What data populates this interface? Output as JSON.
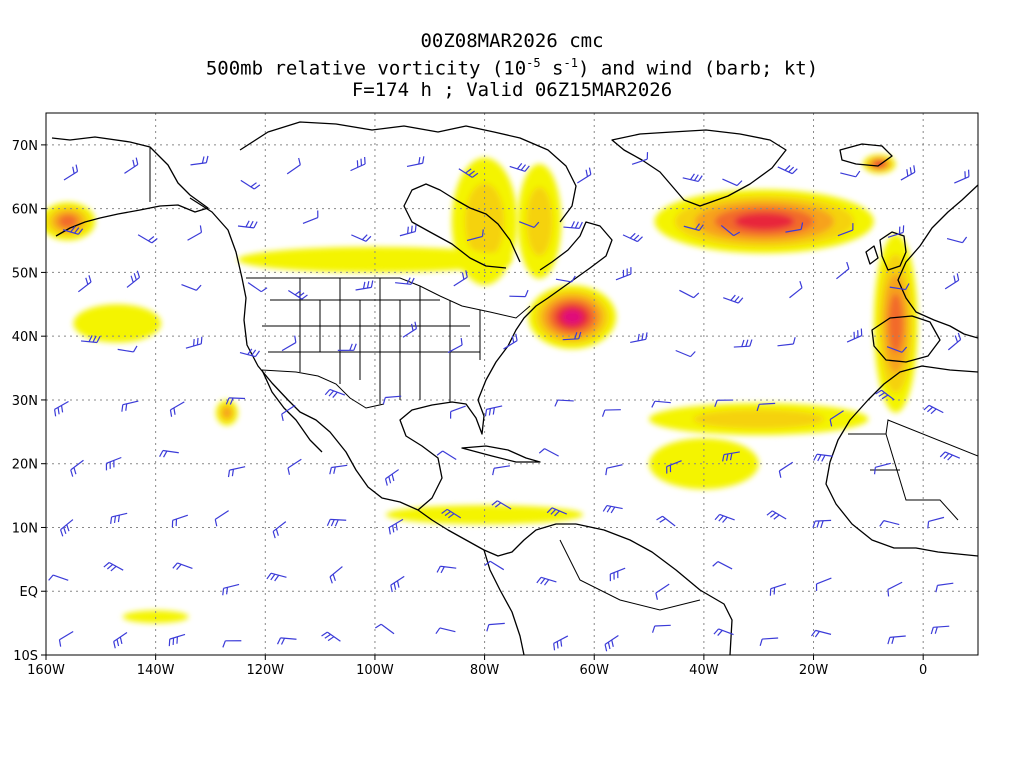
{
  "header": {
    "line1": "00Z08MAR2026 cmc",
    "line2_pre": "500mb relative vorticity (10",
    "line2_exp1": "-5",
    "line2_mid": " s",
    "line2_exp2": "-1",
    "line2_post": ") and wind (barb; kt)",
    "line3": "F=174 h ; Valid 06Z15MAR2026"
  },
  "map": {
    "projection": "cylindrical-equidistant",
    "lon_range": [
      -160,
      10
    ],
    "lat_range": [
      -10,
      75
    ],
    "lon_ticks": [
      {
        "lon": -160,
        "label": "160W"
      },
      {
        "lon": -140,
        "label": "140W"
      },
      {
        "lon": -120,
        "label": "120W"
      },
      {
        "lon": -100,
        "label": "100W"
      },
      {
        "lon": -80,
        "label": "80W"
      },
      {
        "lon": -60,
        "label": "60W"
      },
      {
        "lon": -40,
        "label": "40W"
      },
      {
        "lon": -20,
        "label": "20W"
      },
      {
        "lon": 0,
        "label": "0"
      }
    ],
    "lat_ticks": [
      {
        "lat": 70,
        "label": "70N"
      },
      {
        "lat": 60,
        "label": "60N"
      },
      {
        "lat": 50,
        "label": "50N"
      },
      {
        "lat": 40,
        "label": "40N"
      },
      {
        "lat": 30,
        "label": "30N"
      },
      {
        "lat": 20,
        "label": "20N"
      },
      {
        "lat": 10,
        "label": "10N"
      },
      {
        "lat": 0,
        "label": "EQ"
      },
      {
        "lat": -10,
        "label": "10S"
      }
    ],
    "grid": true,
    "colors": {
      "vort_level1": "#f4f400",
      "vort_level2": "#f5d20a",
      "vort_level3": "#f7a21c",
      "vort_level4": "#f26a2c",
      "vort_level5": "#e8283a",
      "vort_level6": "#e0107a",
      "wind_barb": "#3b3bd8",
      "coastline": "#000000"
    },
    "vorticity_features": [
      {
        "lon": -80,
        "lat": 58,
        "dlon": 6,
        "dlat": 10,
        "level": 2
      },
      {
        "lon": -70,
        "lat": 58,
        "dlon": 4,
        "dlat": 9,
        "level": 2
      },
      {
        "lon": -64,
        "lat": 43,
        "dlon": 8,
        "dlat": 5,
        "level": 6
      },
      {
        "lon": -29,
        "lat": 58,
        "dlon": 20,
        "dlat": 5,
        "level": 5
      },
      {
        "lon": -5,
        "lat": 42,
        "dlon": 4,
        "dlat": 14,
        "level": 4
      },
      {
        "lon": -156,
        "lat": 58,
        "dlon": 5,
        "dlat": 3,
        "level": 4
      },
      {
        "lon": -127,
        "lat": 28,
        "dlon": 2,
        "dlat": 2,
        "level": 3
      },
      {
        "lon": -8,
        "lat": 67,
        "dlon": 3,
        "dlat": 1.5,
        "level": 5
      },
      {
        "lon": -30,
        "lat": 27,
        "dlon": 20,
        "dlat": 2.5,
        "level": 2
      },
      {
        "lon": -147,
        "lat": 42,
        "dlon": 8,
        "dlat": 3,
        "level": 1
      },
      {
        "lon": -100,
        "lat": 52,
        "dlon": 25,
        "dlat": 2,
        "level": 1
      },
      {
        "lon": -40,
        "lat": 20,
        "dlon": 10,
        "dlat": 4,
        "level": 1
      },
      {
        "lon": -80,
        "lat": 12,
        "dlon": 18,
        "dlat": 1.5,
        "level": 1
      },
      {
        "lon": -140,
        "lat": -4,
        "dlon": 6,
        "dlat": 1,
        "level": 1
      }
    ]
  }
}
